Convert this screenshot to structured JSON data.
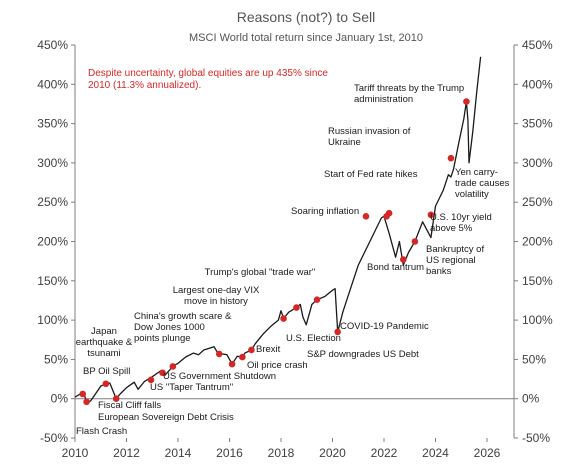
{
  "chart_data": {
    "type": "line",
    "title": "Reasons (not?) to Sell",
    "subtitle": "MSCI World total return since January 1st, 2010",
    "note": [
      "Despite uncertainty, global equities are up 435% since",
      "2010 (11.3% annualized)."
    ],
    "xlabel": "",
    "ylabel": "",
    "xlim": [
      2010,
      2026
    ],
    "ylim": [
      -50,
      450
    ],
    "x_ticks": [
      2010,
      2012,
      2014,
      2016,
      2018,
      2020,
      2022,
      2024,
      2026
    ],
    "y_ticks": [
      -50,
      0,
      50,
      100,
      150,
      200,
      250,
      300,
      350,
      400,
      450
    ],
    "y_tick_labels": [
      "-50%",
      "0%",
      "50%",
      "100%",
      "150%",
      "200%",
      "250%",
      "300%",
      "350%",
      "400%",
      "450%"
    ],
    "grid": false,
    "line_color": "#1a1a1a",
    "marker_color": "#d62728",
    "note_color": "#d62728",
    "series": [
      {
        "x": [
          2010.0,
          2010.2,
          2010.33,
          2010.45,
          2010.6,
          2010.75,
          2011.0,
          2011.2,
          2011.35,
          2011.6,
          2011.75,
          2012.0,
          2012.3,
          2012.45,
          2012.7,
          2013.0,
          2013.35,
          2013.5,
          2013.8,
          2014.0,
          2014.3,
          2014.6,
          2014.8,
          2015.0,
          2015.4,
          2015.6,
          2015.7,
          2015.9,
          2016.1,
          2016.3,
          2016.5,
          2016.6,
          2016.85,
          2017.0,
          2017.3,
          2017.6,
          2017.9,
          2018.0,
          2018.1,
          2018.3,
          2018.6,
          2018.75,
          2018.85,
          2018.98,
          2019.2,
          2019.4,
          2019.7,
          2020.0,
          2020.1,
          2020.2,
          2020.4,
          2020.7,
          2020.9,
          2021.0,
          2021.3,
          2021.6,
          2021.9,
          2022.0,
          2022.2,
          2022.45,
          2022.6,
          2022.75,
          2022.95,
          2023.2,
          2023.5,
          2023.82,
          2024.0,
          2024.3,
          2024.5,
          2024.6,
          2024.7,
          2024.9,
          2025.1,
          2025.2,
          2025.26,
          2025.3,
          2025.45,
          2025.6,
          2025.75
        ],
        "y": [
          2,
          6,
          8,
          -4,
          -3,
          4,
          16,
          19,
          20,
          0,
          6,
          14,
          21,
          12,
          22,
          28,
          36,
          30,
          41,
          45,
          53,
          58,
          56,
          62,
          66,
          55,
          57,
          56,
          44,
          54,
          53,
          58,
          62,
          70,
          82,
          92,
          100,
          112,
          102,
          110,
          116,
          120,
          104,
          94,
          120,
          126,
          130,
          138,
          140,
          85,
          110,
          140,
          160,
          170,
          190,
          210,
          230,
          232,
          210,
          180,
          200,
          170,
          186,
          200,
          225,
          205,
          245,
          265,
          285,
          282,
          292,
          325,
          356,
          378,
          355,
          300,
          340,
          390,
          435
        ]
      }
    ],
    "events": [
      {
        "x": 2010.3,
        "y": 6,
        "label": "Flash Crash"
      },
      {
        "x": 2010.45,
        "y": -4,
        "label": "BP Oil Spill"
      },
      {
        "x": 2011.2,
        "y": 19,
        "label": "Japan earthquake & tsunami"
      },
      {
        "x": 2011.6,
        "y": 0,
        "label": "European Sovereign Debt Crisis"
      },
      {
        "x": 2012.95,
        "y": 24,
        "label": "Fiscal Cliff falls"
      },
      {
        "x": 2013.4,
        "y": 33,
        "label": "US \"Taper Tantrum\""
      },
      {
        "x": 2013.8,
        "y": 41,
        "label": "US Government Shutdown"
      },
      {
        "x": 2015.6,
        "y": 57,
        "label": "China's growth scare & Dow Jones 1000 points plunge"
      },
      {
        "x": 2016.1,
        "y": 44,
        "label": "Oil price crash"
      },
      {
        "x": 2016.5,
        "y": 53,
        "label": "Brexit"
      },
      {
        "x": 2016.85,
        "y": 62,
        "label": "U.S. Election"
      },
      {
        "x": 2018.1,
        "y": 102,
        "label": "Largest one-day VIX move in history"
      },
      {
        "x": 2018.6,
        "y": 116,
        "label": "Trump's global \"trade war\""
      },
      {
        "x": 2019.4,
        "y": 126,
        "label": "S&P downgrades US Debt"
      },
      {
        "x": 2020.2,
        "y": 85,
        "label": "COVID-19 Pandemic"
      },
      {
        "x": 2021.3,
        "y": 232,
        "label": "Soaring inflation"
      },
      {
        "x": 2022.1,
        "y": 232,
        "label": "Russian invasion of Ukraine"
      },
      {
        "x": 2022.2,
        "y": 236,
        "label": "Start of Fed rate hikes"
      },
      {
        "x": 2022.75,
        "y": 177,
        "label": "Bond tantrum"
      },
      {
        "x": 2023.2,
        "y": 200,
        "label": "Bankruptcy of US regional banks"
      },
      {
        "x": 2023.82,
        "y": 234,
        "label": "U.S. 10yr yield above 5%"
      },
      {
        "x": 2024.6,
        "y": 306,
        "label": "Yen carry-trade causes volatility"
      },
      {
        "x": 2025.2,
        "y": 378,
        "label": "Tariff threats by the Trump administration"
      }
    ],
    "annotations": [
      {
        "id": "flash-crash",
        "lines": [
          "Flash Crash"
        ]
      },
      {
        "id": "bp-oil",
        "lines": [
          "BP Oil Spill"
        ]
      },
      {
        "id": "japan",
        "lines": [
          "Japan",
          "earthquake &",
          "tsunami"
        ]
      },
      {
        "id": "fiscal-cliff",
        "lines": [
          "Fiscal Cliff falls"
        ]
      },
      {
        "id": "euro-debt",
        "lines": [
          "European Sovereign Debt Crisis"
        ]
      },
      {
        "id": "taper",
        "lines": [
          "US \"Taper Tantrum\""
        ]
      },
      {
        "id": "shutdown",
        "lines": [
          "US Government Shutdown"
        ]
      },
      {
        "id": "china",
        "lines": [
          "China's growth scare &",
          "Dow Jones 1000",
          "points plunge"
        ]
      },
      {
        "id": "oil",
        "lines": [
          "Oil price crash"
        ]
      },
      {
        "id": "brexit",
        "lines": [
          "Brexit"
        ]
      },
      {
        "id": "election",
        "lines": [
          "U.S. Election"
        ]
      },
      {
        "id": "sp-downgrade",
        "lines": [
          "S&P downgrades US Debt"
        ]
      },
      {
        "id": "vix",
        "lines": [
          "Largest one-day VIX",
          "move in history"
        ]
      },
      {
        "id": "trade-war",
        "lines": [
          "Trump's global \"trade war\""
        ]
      },
      {
        "id": "covid",
        "lines": [
          "COVID-19 Pandemic"
        ]
      },
      {
        "id": "inflation",
        "lines": [
          "Soaring inflation"
        ]
      },
      {
        "id": "russia",
        "lines": [
          "Russian invasion of",
          "Ukraine"
        ]
      },
      {
        "id": "fed-hikes",
        "lines": [
          "Start of Fed rate hikes"
        ]
      },
      {
        "id": "bond-tantrum",
        "lines": [
          "Bond tantrum"
        ]
      },
      {
        "id": "regional-banks",
        "lines": [
          "Bankruptcy of",
          "US regional",
          "banks"
        ]
      },
      {
        "id": "yield",
        "lines": [
          "U.S. 10yr yield",
          "above 5%"
        ]
      },
      {
        "id": "yen",
        "lines": [
          "Yen carry-",
          "trade causes",
          "volatility"
        ]
      },
      {
        "id": "tariff",
        "lines": [
          "Tariff threats by the Trump",
          "administration"
        ]
      }
    ]
  }
}
